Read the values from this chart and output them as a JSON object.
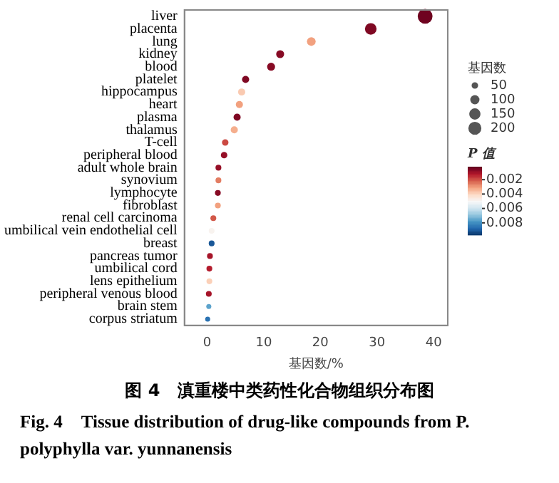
{
  "chart_data": {
    "type": "bubble",
    "orientation": "horizontal",
    "title": "图 4　滇重楼中类药性化合物组织分布图",
    "subtitle": "Fig. 4　Tissue distribution of drug-like compounds from P. polyphylla var. yunnanensis",
    "xlabel": "基因数/%",
    "legend_title": "基因数",
    "clabel": "P 值",
    "categories": [
      "liver",
      "placenta",
      "lung",
      "kidney",
      "blood",
      "platelet",
      "hippocampus",
      "heart",
      "plasma",
      "thalamus",
      "T-cell",
      "peripheral blood",
      "adult whole brain",
      "synovium",
      "lymphocyte",
      "fibroblast",
      "renal cell carcinoma",
      "umbilical vein endothelial cell",
      "breast",
      "pancreas tumor",
      "umbilical cord",
      "lens epithelium",
      "peripheral venous blood",
      "brain stem",
      "corpus striatum"
    ],
    "values": [
      38.5,
      28.9,
      18.4,
      12.9,
      11.3,
      6.8,
      6.1,
      5.7,
      5.3,
      4.8,
      3.2,
      3.0,
      2.0,
      2.0,
      1.9,
      1.9,
      1.1,
      0.8,
      0.8,
      0.5,
      0.4,
      0.4,
      0.3,
      0.3,
      0.1
    ],
    "sizes": [
      260,
      160,
      90,
      75,
      75,
      60,
      60,
      60,
      60,
      60,
      50,
      50,
      40,
      40,
      40,
      40,
      40,
      40,
      40,
      40,
      40,
      40,
      40,
      30,
      30
    ],
    "size_legend": [
      50,
      100,
      150,
      200
    ],
    "cvalues": [
      0.0003,
      0.0005,
      0.003,
      0.0006,
      0.0006,
      0.0005,
      0.0037,
      0.003,
      0.0005,
      0.0032,
      0.0018,
      0.0008,
      0.0008,
      0.0025,
      0.0006,
      0.003,
      0.002,
      0.0048,
      0.009,
      0.001,
      0.0012,
      0.0038,
      0.001,
      0.0075,
      0.0085
    ],
    "clim": [
      0.0002,
      0.0097
    ],
    "cticks": [
      0.002,
      0.004,
      0.006,
      0.008
    ],
    "xlim": [
      -4,
      42.5
    ],
    "xticks": [
      0,
      10,
      20,
      30,
      40
    ],
    "grid": false
  }
}
